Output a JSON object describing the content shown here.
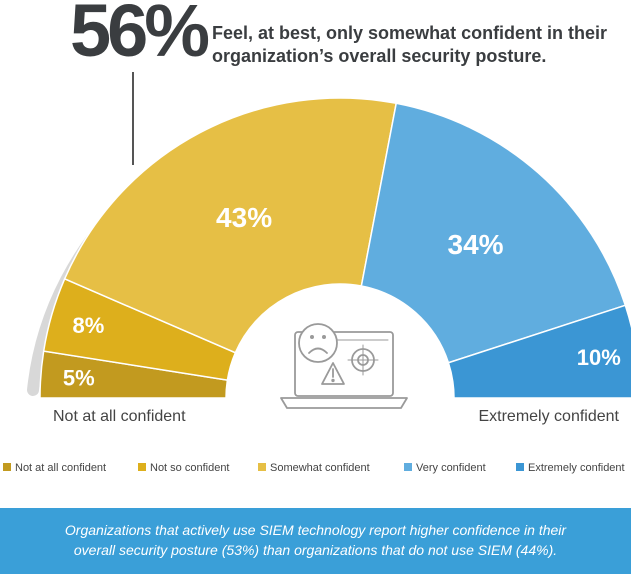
{
  "headline": {
    "value": "56%",
    "text": "Feel, at best, only somewhat confident in their organization’s overall security posture."
  },
  "chart_data": {
    "type": "pie",
    "subtype": "semicircle-donut",
    "categories": [
      "Not at all confident",
      "Not so confident",
      "Somewhat confident",
      "Very confident",
      "Extremely confident"
    ],
    "values": [
      5,
      8,
      43,
      34,
      10
    ],
    "labels": [
      "5%",
      "8%",
      "43%",
      "34%",
      "10%"
    ],
    "colors": [
      "#c29a1f",
      "#ddaf1c",
      "#e6bf45",
      "#60addf",
      "#3b96d4"
    ],
    "scale_left_label": "Not at all confident",
    "scale_right_label": "Extremely confident",
    "bracket_range": [
      "Not at all confident",
      "Somewhat confident"
    ]
  },
  "legend": [
    {
      "label": "Not at all confident",
      "color": "#c29a1f"
    },
    {
      "label": "Not so confident",
      "color": "#ddaf1c"
    },
    {
      "label": "Somewhat confident",
      "color": "#e6bf45"
    },
    {
      "label": "Very confident",
      "color": "#60addf"
    },
    {
      "label": "Extremely confident",
      "color": "#3b96d4"
    }
  ],
  "footer": {
    "line1": "Organizations that actively use SIEM technology report higher confidence in their",
    "line2": "overall security posture (53%) than organizations that do not use SIEM (44%)."
  },
  "icon": "laptop-sad-face-warning-target-icon"
}
